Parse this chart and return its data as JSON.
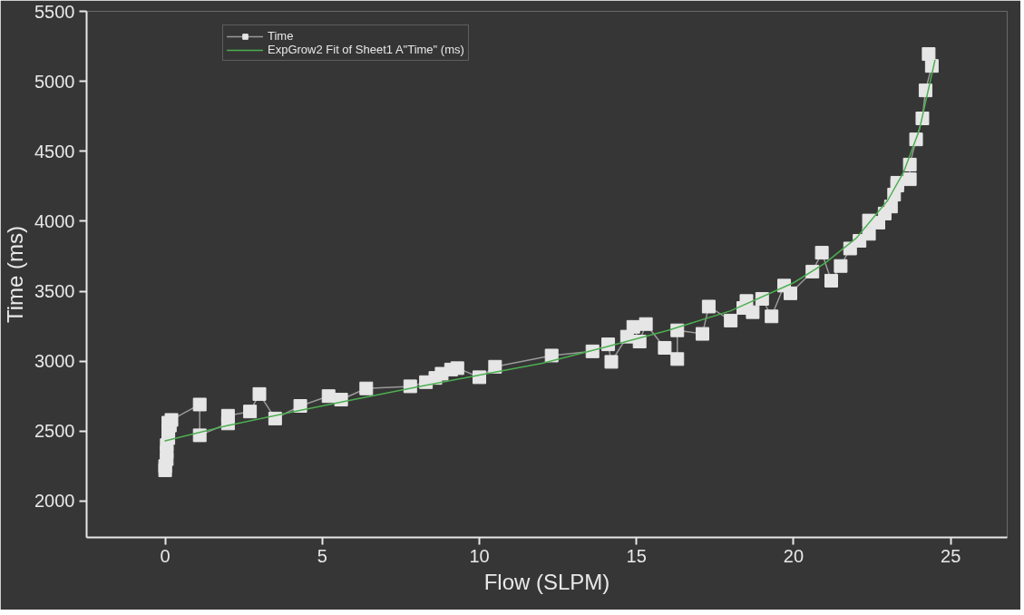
{
  "chart_data": {
    "type": "line",
    "xlabel": "Flow (SLPM)",
    "ylabel": "Time (ms)",
    "xlim": [
      -2.5,
      26.8
    ],
    "ylim": [
      1740,
      5500
    ],
    "xticks": [
      0,
      5,
      10,
      15,
      20,
      25
    ],
    "yticks": [
      2000,
      2500,
      3000,
      3500,
      4000,
      4500,
      5000,
      5500
    ],
    "grid": false,
    "legend": "top left",
    "series": [
      {
        "name": "Time",
        "marker": "square",
        "color": "#e6e6e6",
        "x": [
          0,
          0,
          0.05,
          0.05,
          0.05,
          0.1,
          0.1,
          0.1,
          0.15,
          0.2,
          1.1,
          1.1,
          2.0,
          2.0,
          2.7,
          3.0,
          3.5,
          4.3,
          5.2,
          5.6,
          6.4,
          7.8,
          8.3,
          8.6,
          8.8,
          9.1,
          9.3,
          10.0,
          10.5,
          12.3,
          13.6,
          14.1,
          14.2,
          14.7,
          14.9,
          15.1,
          15.3,
          15.9,
          16.3,
          16.3,
          17.1,
          17.3,
          18.0,
          18.4,
          18.5,
          18.7,
          19.0,
          19.3,
          19.7,
          19.9,
          20.6,
          20.9,
          21.2,
          21.5,
          21.8,
          22.1,
          22.4,
          22.4,
          22.7,
          22.9,
          23.1,
          23.2,
          23.3,
          23.3,
          23.7,
          23.7,
          23.9,
          24.1,
          24.2,
          24.4,
          24.3
        ],
        "values": [
          2220,
          2250,
          2300,
          2350,
          2400,
          2450,
          2500,
          2560,
          2540,
          2580,
          2690,
          2470,
          2555,
          2610,
          2640,
          2765,
          2590,
          2680,
          2750,
          2725,
          2805,
          2820,
          2850,
          2880,
          2910,
          2940,
          2950,
          2885,
          2960,
          3040,
          3070,
          3120,
          2995,
          3175,
          3245,
          3140,
          3265,
          3095,
          3015,
          3220,
          3195,
          3390,
          3290,
          3380,
          3430,
          3350,
          3445,
          3320,
          3540,
          3485,
          3640,
          3775,
          3575,
          3680,
          3805,
          3860,
          3910,
          4005,
          3990,
          4055,
          4105,
          4190,
          4255,
          4275,
          4300,
          4405,
          4585,
          4735,
          4935,
          5110,
          5195
        ]
      },
      {
        "name": "ExpGrow2 Fit of Sheet1 A\"Time\" (ms)",
        "marker": "none",
        "color": "#4caf50",
        "x": [
          0,
          2,
          4,
          6,
          8,
          10,
          12,
          14,
          16,
          18,
          20,
          21,
          22,
          23,
          23.5,
          24,
          24.5
        ],
        "values": [
          2430,
          2540,
          2635,
          2725,
          2815,
          2900,
          2985,
          3100,
          3220,
          3360,
          3560,
          3700,
          3880,
          4150,
          4350,
          4650,
          5150
        ]
      }
    ]
  }
}
